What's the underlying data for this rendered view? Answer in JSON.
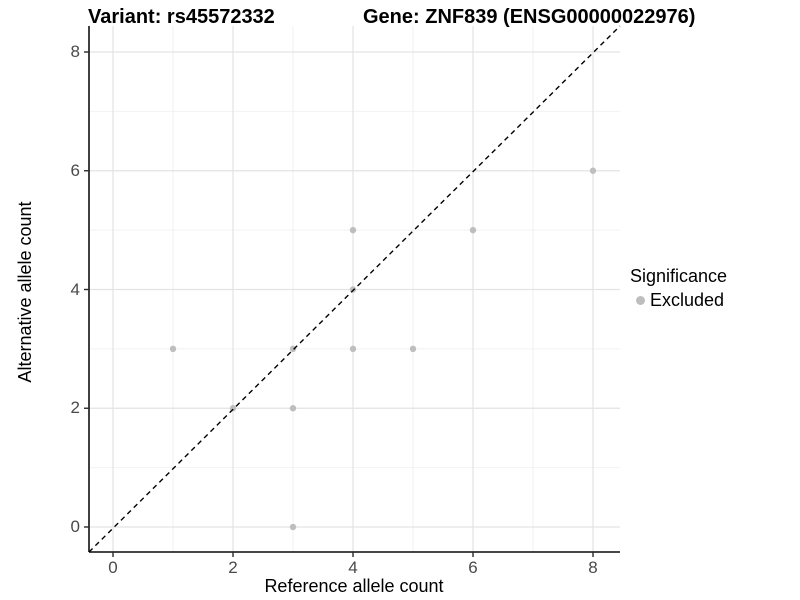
{
  "chart_data": {
    "type": "scatter",
    "title_left": "Variant: rs45572332",
    "title_right": "Gene: ZNF839 (ENSG00000022976)",
    "xlabel": "Reference allele count",
    "ylabel": "Alternative allele count",
    "x_ticks": [
      0,
      2,
      4,
      6,
      8
    ],
    "y_ticks": [
      0,
      2,
      4,
      6,
      8
    ],
    "x_minor": [
      1,
      3,
      5,
      7
    ],
    "y_minor": [
      1,
      3,
      5,
      7
    ],
    "xlim": [
      -0.4,
      8.45
    ],
    "ylim": [
      -0.4,
      8.45
    ],
    "grid": true,
    "legend_position": "right",
    "series": [
      {
        "name": "Excluded",
        "color": "#BEBEBE",
        "points": [
          [
            1,
            3
          ],
          [
            2,
            2
          ],
          [
            3,
            0
          ],
          [
            3,
            2
          ],
          [
            3,
            3
          ],
          [
            4,
            3
          ],
          [
            4,
            4
          ],
          [
            4,
            5
          ],
          [
            5,
            3
          ],
          [
            6,
            5
          ],
          [
            8,
            6
          ]
        ]
      }
    ],
    "reference_line": {
      "type": "identity",
      "slope": 1,
      "intercept": 0,
      "style": "dashed",
      "color": "#000000"
    },
    "legend": {
      "title": "Significance",
      "items": [
        {
          "label": "Excluded",
          "color": "#BEBEBE"
        }
      ]
    }
  },
  "colors": {
    "background": "#FFFFFF",
    "point": "#BEBEBE",
    "grid_major": "#E3E3E3",
    "grid_minor": "#F2F2F2",
    "axis_line": "#2B2B2B",
    "tick_label": "#4A4A4A",
    "text": "#000000"
  }
}
